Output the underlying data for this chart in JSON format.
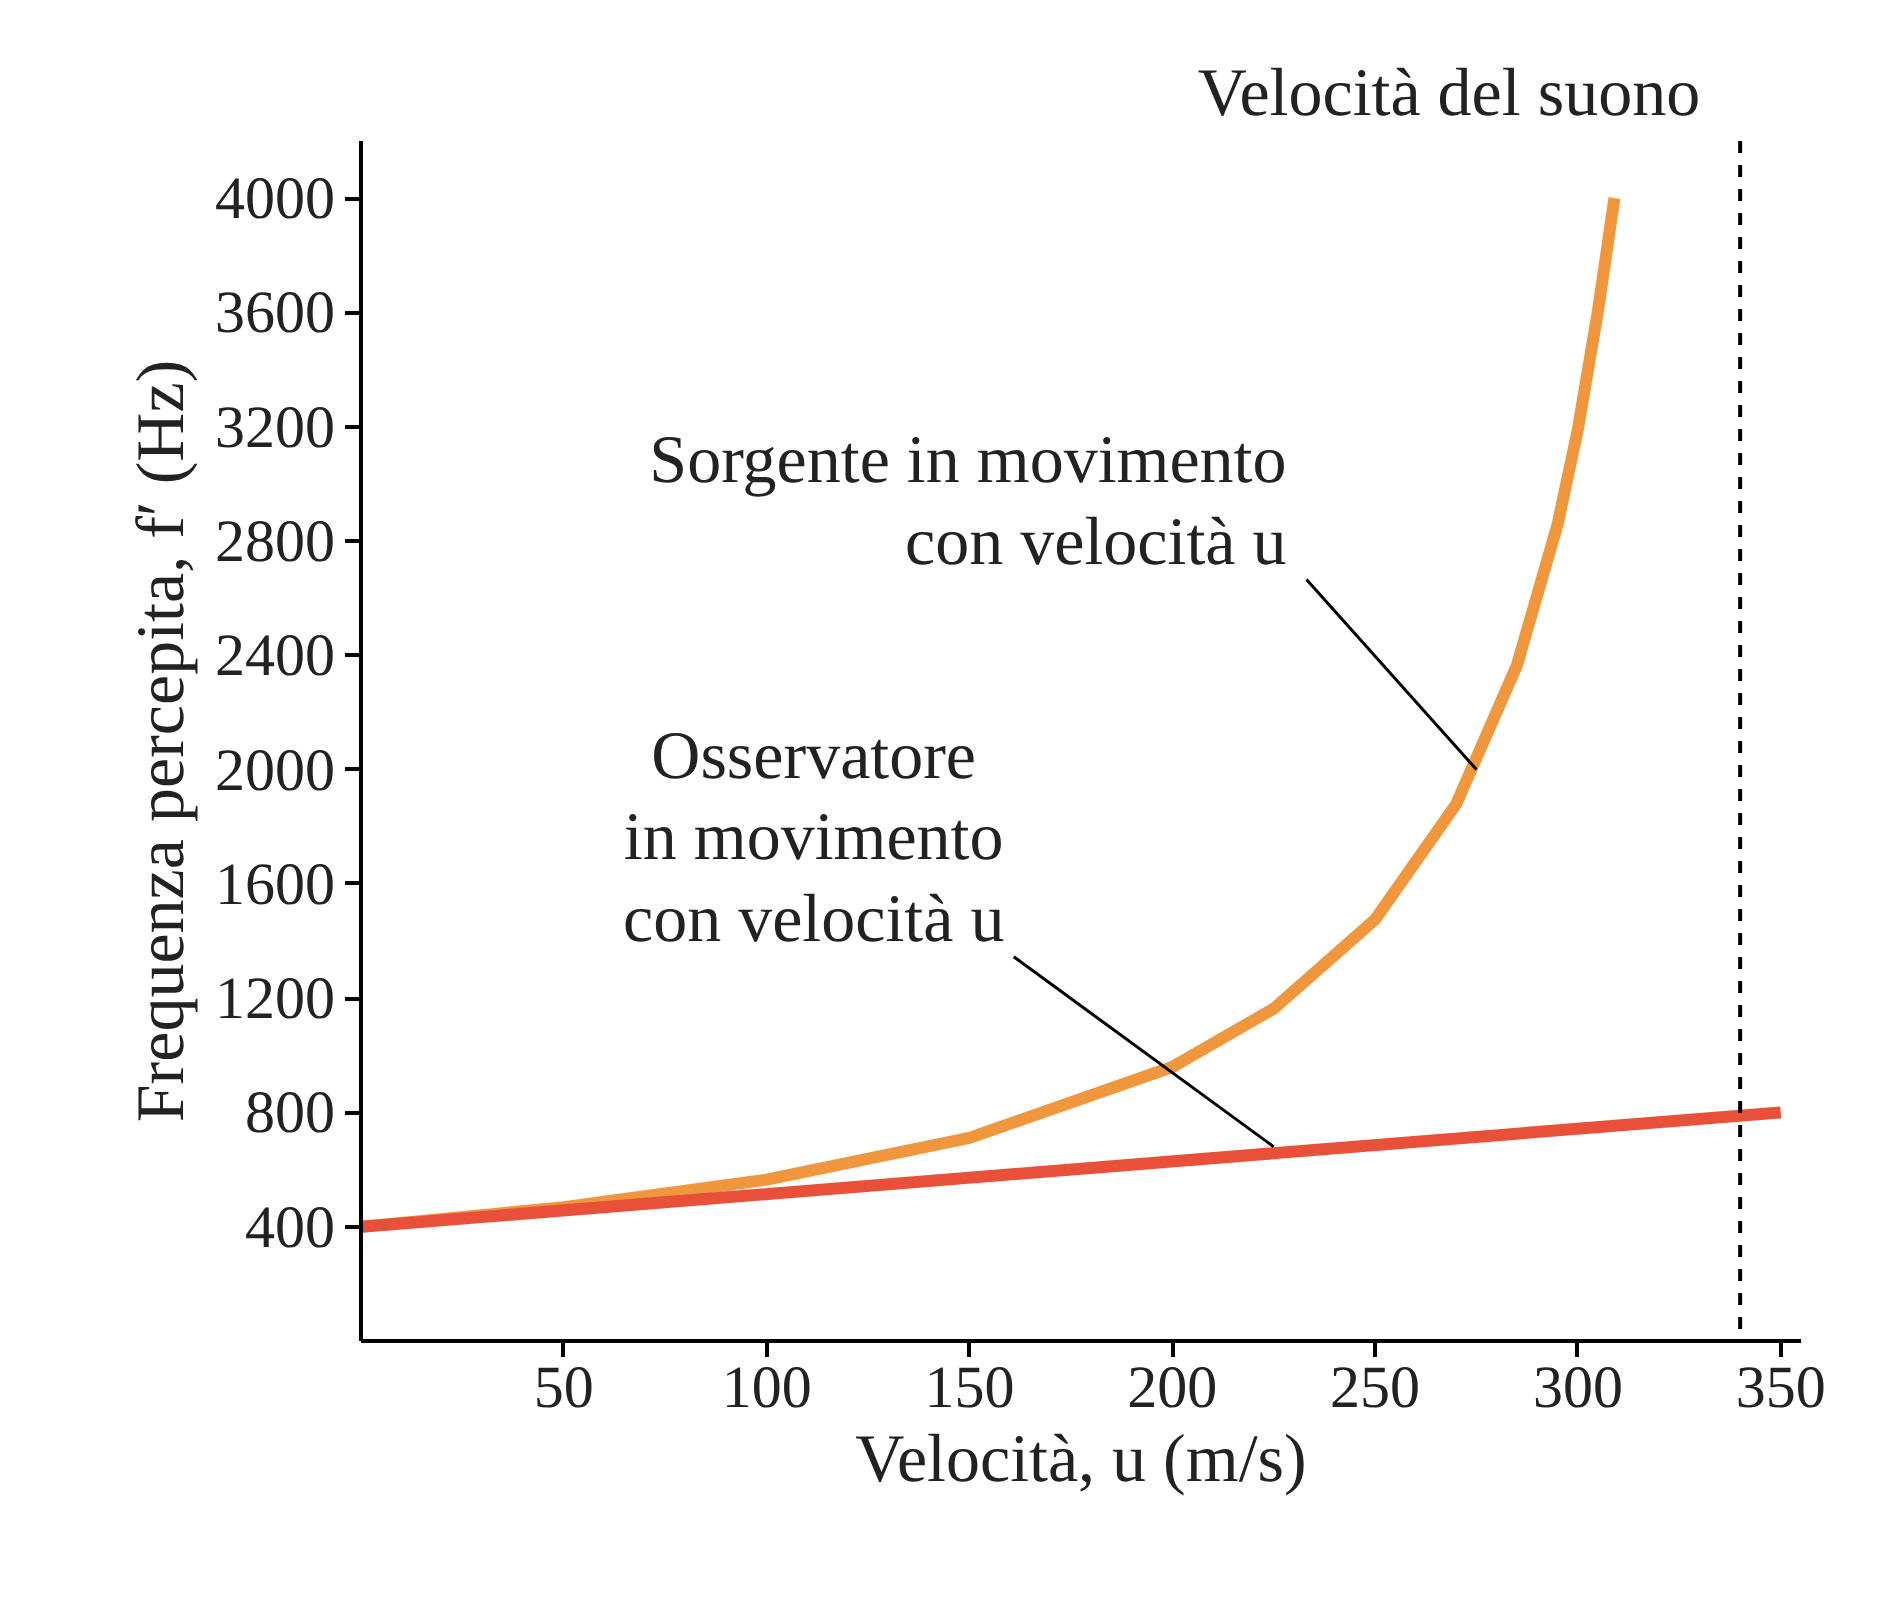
{
  "chart_data": {
    "type": "line",
    "xlabel": "Velocità, u (m/s)",
    "ylabel": "Frequenza percepita, f′ (Hz)",
    "xlim": [
      0,
      355
    ],
    "ylim": [
      0,
      4200
    ],
    "xticks": [
      50,
      100,
      150,
      200,
      250,
      300,
      350
    ],
    "yticks": [
      400,
      800,
      1200,
      1600,
      2000,
      2400,
      2800,
      3200,
      3600,
      4000
    ],
    "grid": false,
    "marker": "none",
    "line_style": "solid",
    "series": [
      {
        "color": "#f0963c",
        "x": [
          0,
          50,
          100,
          150,
          200,
          225,
          250,
          270,
          285,
          295,
          300,
          305,
          309
        ],
        "values": [
          400,
          468,
          565,
          711,
          959,
          1163,
          1475,
          1879,
          2366,
          2858,
          3191,
          3610,
          4000
        ]
      },
      {
        "color": "#e8503a",
        "x": [
          0,
          350
        ],
        "values": [
          400,
          800
        ]
      }
    ],
    "ref_lines": [
      {
        "axis": "x",
        "value": 340,
        "label": "Velocità del suono",
        "color": "#000000",
        "line_style": "dashed"
      }
    ],
    "annotations": [
      {
        "text": "Sorgente in movimento\ncon velocità u",
        "x": 275,
        "y": 2000
      },
      {
        "text": "Osservatore\nin movimento\ncon velocità u",
        "x": 225,
        "y": 680
      }
    ]
  }
}
